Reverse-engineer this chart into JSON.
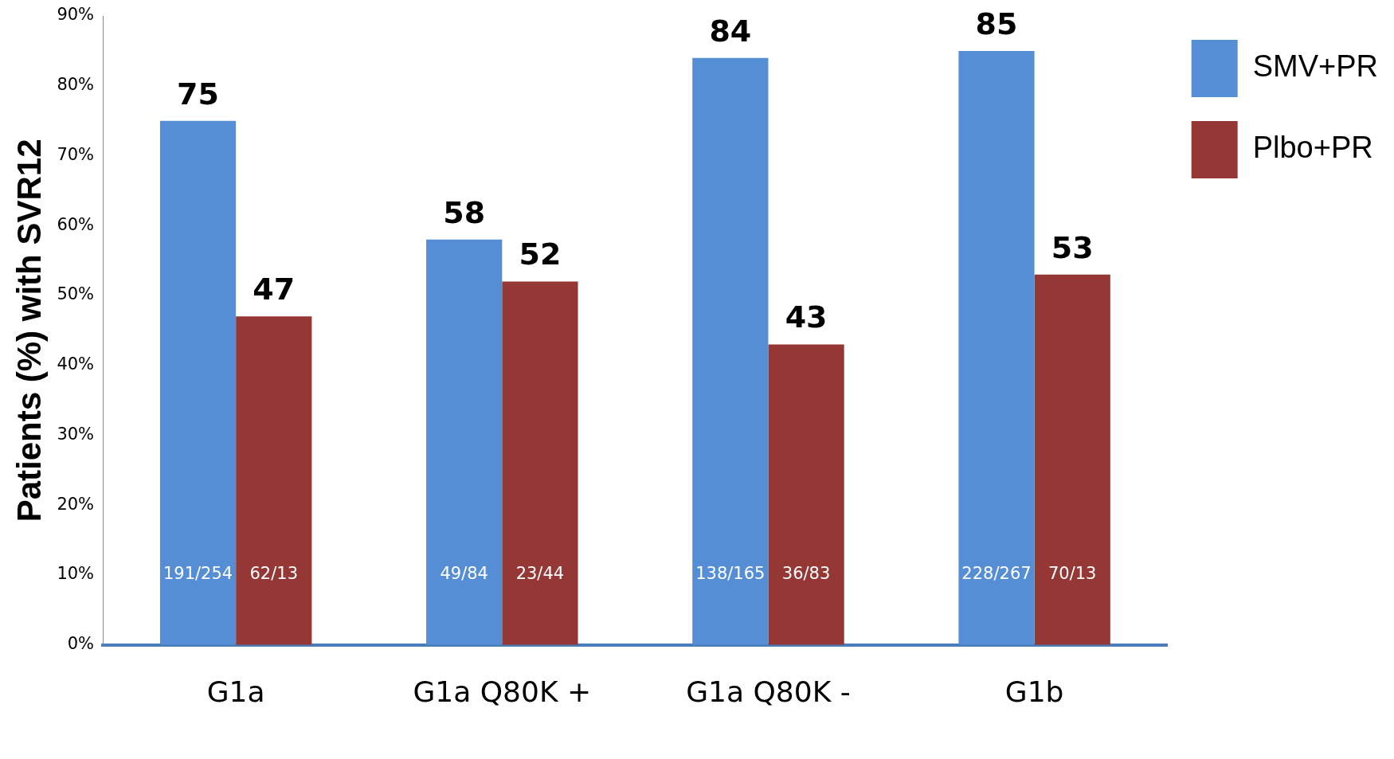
{
  "chart_data": {
    "type": "bar",
    "ylabel": "Patients (%) with SVR12",
    "categories": [
      "G1a",
      "G1a Q80K +",
      "G1a Q80K -",
      "G1b"
    ],
    "series": [
      {
        "name": "SMV+PR",
        "color": "#558ed5",
        "values": [
          75,
          58,
          84,
          85
        ]
      },
      {
        "name": "Plbo+PR",
        "color": "#953735",
        "values": [
          47,
          52,
          43,
          53
        ]
      }
    ],
    "ylim": [
      0,
      90
    ],
    "yticks": [
      {
        "value": 0,
        "label": "0%"
      },
      {
        "value": 10,
        "label": "10%"
      },
      {
        "value": 20,
        "label": "20%"
      },
      {
        "value": 30,
        "label": "30%"
      },
      {
        "value": 40,
        "label": "40%"
      },
      {
        "value": 50,
        "label": "50%"
      },
      {
        "value": 60,
        "label": "60%"
      },
      {
        "value": 70,
        "label": "70%"
      },
      {
        "value": 80,
        "label": "80%"
      },
      {
        "value": 90,
        "label": "90%"
      }
    ],
    "grid": false,
    "legend": "top right",
    "data_labels": true,
    "annotations": [
      {
        "text": "191/254",
        "x": "G1a",
        "y": 10
      },
      {
        "text": "62/13",
        "x": "G1a",
        "y": 10
      },
      {
        "text": "49/84",
        "x": "G1a Q80K +",
        "y": 10
      },
      {
        "text": "23/44",
        "x": "G1a Q80K +",
        "y": 10
      },
      {
        "text": "138/165",
        "x": "G1a Q80K -",
        "y": 10
      },
      {
        "text": "36/83",
        "x": "G1a Q80K -",
        "y": 10
      },
      {
        "text": "228/267",
        "x": "G1b",
        "y": 10
      },
      {
        "text": "70/13",
        "x": "G1b",
        "y": 10
      }
    ]
  }
}
